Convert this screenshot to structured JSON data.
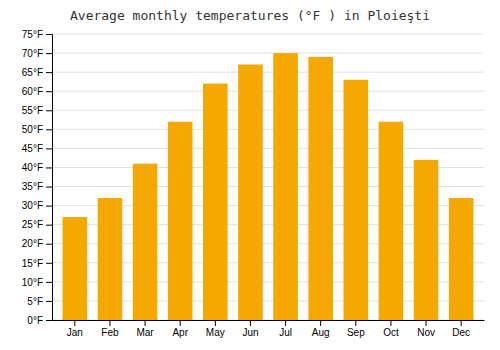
{
  "chart_data": {
    "type": "bar",
    "title": "Average monthly temperatures (°F ) in Ploieşti",
    "categories": [
      "Jan",
      "Feb",
      "Mar",
      "Apr",
      "May",
      "Jun",
      "Jul",
      "Aug",
      "Sep",
      "Oct",
      "Nov",
      "Dec"
    ],
    "values": [
      27,
      32,
      41,
      52,
      62,
      67,
      70,
      69,
      63,
      52,
      42,
      32
    ],
    "color": "#F5A800",
    "ylim": [
      0,
      75
    ],
    "yticks": [
      {
        "value": 0,
        "label": "0°F"
      },
      {
        "value": 5,
        "label": "5°F"
      },
      {
        "value": 10,
        "label": "10°F"
      },
      {
        "value": 15,
        "label": "15°F"
      },
      {
        "value": 20,
        "label": "20°F"
      },
      {
        "value": 25,
        "label": "25°F"
      },
      {
        "value": 30,
        "label": "30°F"
      },
      {
        "value": 35,
        "label": "35°F"
      },
      {
        "value": 40,
        "label": "40°F"
      },
      {
        "value": 45,
        "label": "45°F"
      },
      {
        "value": 50,
        "label": "50°F"
      },
      {
        "value": 55,
        "label": "55°F"
      },
      {
        "value": 60,
        "label": "60°F"
      },
      {
        "value": 65,
        "label": "65°F"
      },
      {
        "value": 70,
        "label": "70°F"
      },
      {
        "value": 75,
        "label": "75°F"
      }
    ],
    "grid": true
  }
}
